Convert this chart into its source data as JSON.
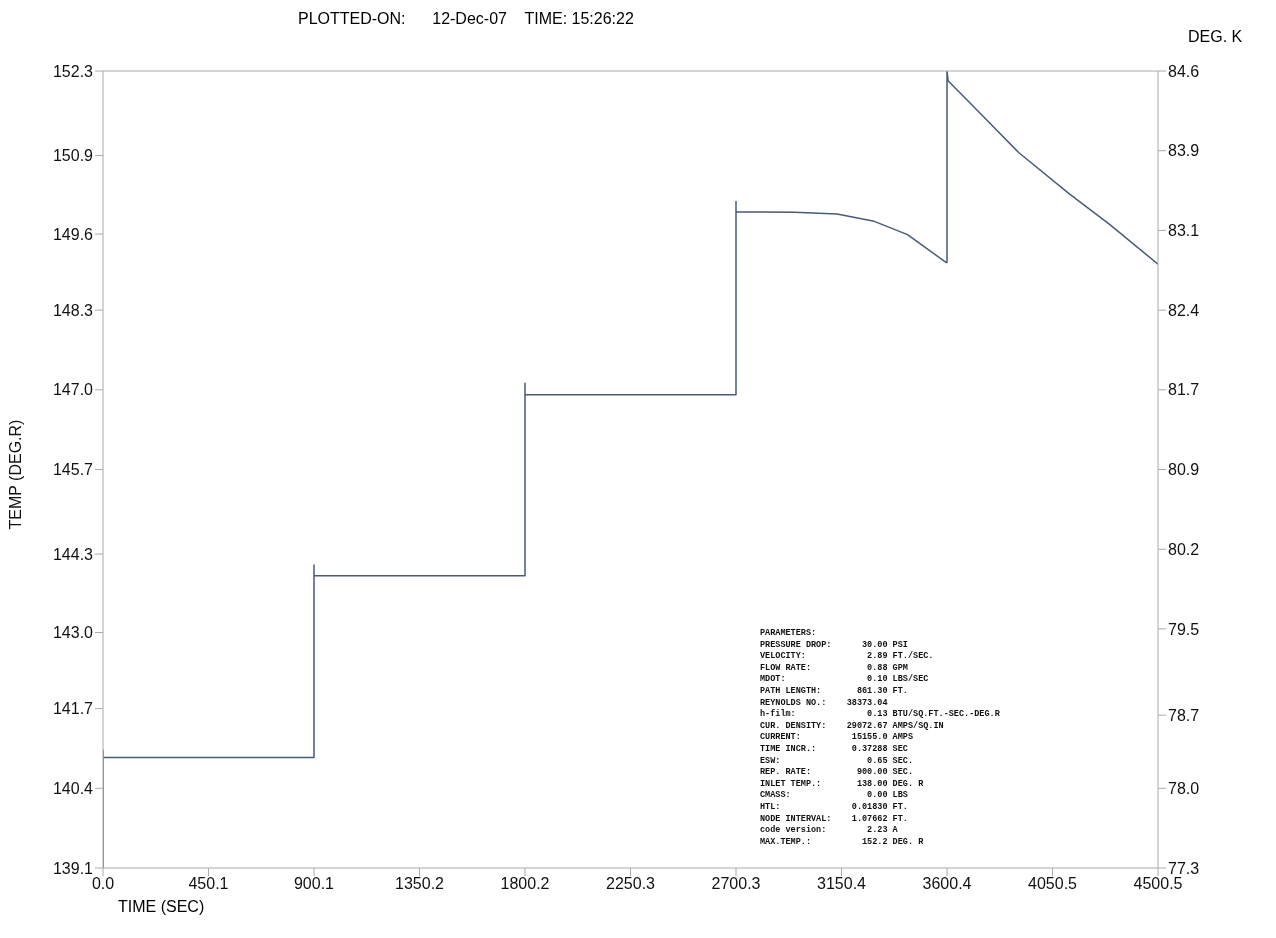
{
  "chart_data": {
    "type": "line",
    "title": "PLOTTED-ON:      12-Dec-07    TIME: 15:26:22",
    "xlabel": "TIME (SEC)",
    "ylabel": "TEMP (DEG.R)",
    "y2label": "DEG. K",
    "x": [
      0,
      0,
      0,
      900.1,
      900.1,
      900.1,
      1800.2,
      1800.2,
      1800.2,
      2700.3,
      2700.3,
      2700.3,
      2950,
      3131,
      3290,
      3432,
      3596,
      3600.4,
      3600.4,
      3605,
      3747,
      3906,
      4121,
      4294,
      4500.5
    ],
    "series": [
      {
        "color": "#4a5a7a",
        "values": [
          139.1,
          141.05,
          140.93,
          140.93,
          144.12,
          143.94,
          143.94,
          147.13,
          146.94,
          146.94,
          150.14,
          149.97,
          149.96,
          149.93,
          149.81,
          149.59,
          149.13,
          149.13,
          152.3,
          152.14,
          151.58,
          150.95,
          150.27,
          149.76,
          149.1
        ]
      }
    ],
    "xlim": [
      0,
      4500.5
    ],
    "xticks": [
      {
        "value": 0,
        "label": "0.0"
      },
      {
        "value": 450.05,
        "label": "450.1"
      },
      {
        "value": 900.1,
        "label": "900.1"
      },
      {
        "value": 1350.15,
        "label": "1350.2"
      },
      {
        "value": 1800.2,
        "label": "1800.2"
      },
      {
        "value": 2250.25,
        "label": "2250.3"
      },
      {
        "value": 2700.3,
        "label": "2700.3"
      },
      {
        "value": 3150.35,
        "label": "3150.4"
      },
      {
        "value": 3600.4,
        "label": "3600.4"
      },
      {
        "value": 4050.45,
        "label": "4050.5"
      },
      {
        "value": 4500.5,
        "label": "4500.5"
      }
    ],
    "ylim": [
      139.1,
      152.3
    ],
    "yticks": [
      {
        "value": 139.1,
        "label": "139.1"
      },
      {
        "value": 140.42,
        "label": "140.4"
      },
      {
        "value": 141.74,
        "label": "141.7"
      },
      {
        "value": 143.0,
        "label": "143.0"
      },
      {
        "value": 144.3,
        "label": "144.3"
      },
      {
        "value": 145.7,
        "label": "145.7"
      },
      {
        "value": 147.02,
        "label": "147.0"
      },
      {
        "value": 148.34,
        "label": "148.3"
      },
      {
        "value": 149.6,
        "label": "149.6"
      },
      {
        "value": 150.9,
        "label": "150.9"
      },
      {
        "value": 152.3,
        "label": "152.3"
      }
    ],
    "y2lim": [
      77.3,
      84.6
    ],
    "y2ticks": [
      {
        "value": 77.3,
        "label": "77.3"
      },
      {
        "value": 78.03,
        "label": "78.0"
      },
      {
        "value": 78.7,
        "label": "78.7"
      },
      {
        "value": 79.49,
        "label": "79.5"
      },
      {
        "value": 80.22,
        "label": "80.2"
      },
      {
        "value": 80.95,
        "label": "80.9"
      },
      {
        "value": 81.68,
        "label": "81.7"
      },
      {
        "value": 82.41,
        "label": "82.4"
      },
      {
        "value": 83.14,
        "label": "83.1"
      },
      {
        "value": 83.87,
        "label": "83.9"
      },
      {
        "value": 84.6,
        "label": "84.6"
      }
    ],
    "marker": "none",
    "line_style": "solid",
    "annotations": [
      "PARAMETERS:",
      "PRESSURE DROP:      30.00 PSI",
      "VELOCITY:            2.89 FT./SEC.",
      "FLOW RATE:           0.88 GPM",
      "MDOT:                0.10 LBS/SEC",
      "PATH LENGTH:       861.30 FT.",
      "REYNOLDS NO.:    38373.04",
      "h-film:              0.13 BTU/SQ.FT.-SEC.-DEG.R",
      "CUR. DENSITY:    29072.67 AMPS/SQ.IN",
      "CURRENT:          15155.0 AMPS",
      "TIME INCR.:       0.37288 SEC",
      "ESW:                 0.65 SEC.",
      "REP. RATE:         900.00 SEC.",
      "INLET TEMP.:       138.00 DEG. R",
      "CMASS:               0.00 LBS",
      "HTL:              0.01830 FT.",
      "NODE INTERVAL:    1.07662 FT.",
      "code version:        2.23 A",
      "MAX.TEMP.:          152.2 DEG. R"
    ]
  }
}
